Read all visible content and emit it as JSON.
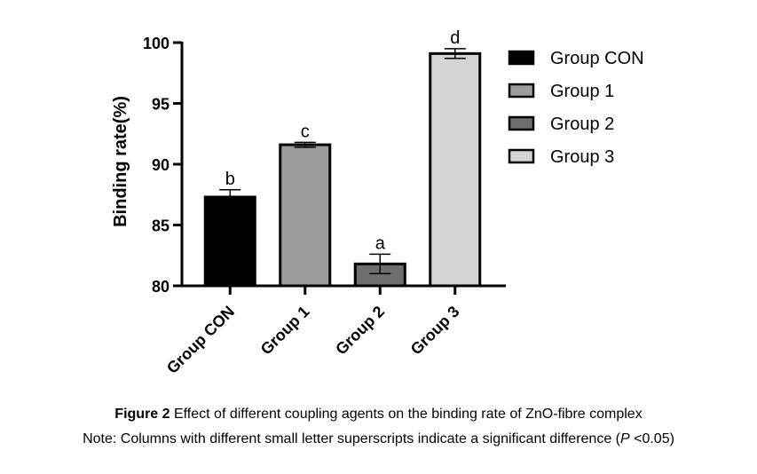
{
  "chart_data": {
    "type": "bar",
    "categories": [
      "Group CON",
      "Group 1",
      "Group 2",
      "Group 3"
    ],
    "values": [
      87.3,
      91.6,
      81.8,
      99.1
    ],
    "errors": [
      0.6,
      0.2,
      0.8,
      0.4
    ],
    "significance_letters": [
      "b",
      "c",
      "a",
      "d"
    ],
    "colors": [
      "#000000",
      "#9c9c9c",
      "#6e6e6e",
      "#d4d4d4"
    ],
    "ylabel": "Binding rate(%)",
    "xlabel": "",
    "ylim": [
      80,
      100
    ],
    "yticks": [
      80,
      85,
      90,
      95,
      100
    ],
    "legend": {
      "position": "right",
      "entries": [
        "Group CON",
        "Group 1",
        "Group 2",
        "Group 3"
      ]
    }
  },
  "caption": {
    "figure_label": "Figure 2",
    "figure_text": " Effect of different coupling agents on the binding rate of ZnO-fibre complex",
    "note_prefix": "Note: Columns with different small letter superscripts indicate a significant difference (",
    "note_p": "P",
    "note_suffix": " <0.05)"
  }
}
